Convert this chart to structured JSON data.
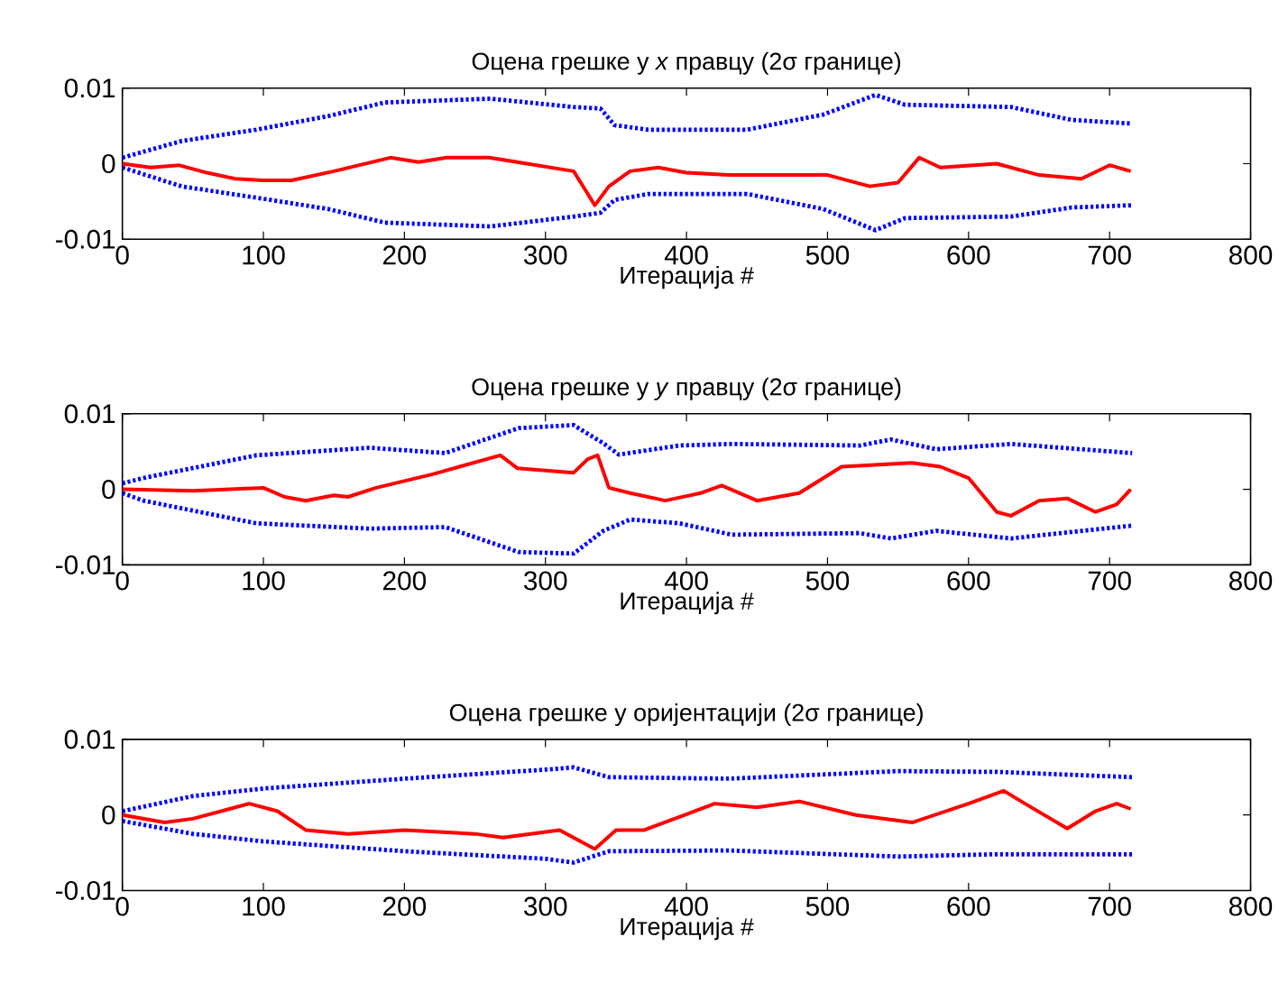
{
  "chart_data": [
    {
      "type": "line",
      "title": "Оцена грешке у *x* правцу (2σ границе)",
      "xlabel": "Итерација #",
      "xlim": [
        0,
        800
      ],
      "xticks": [
        0,
        100,
        200,
        300,
        400,
        500,
        600,
        700,
        800
      ],
      "ylim": [
        -0.01,
        0.01
      ],
      "yticks": [
        -0.01,
        0,
        0.01
      ],
      "series": [
        {
          "color": "#0000ff",
          "line_style": "dotted",
          "x": [
            0,
            42,
            95,
            146,
            186,
            261,
            320,
            339,
            349,
            373,
            443,
            497,
            534,
            555,
            630,
            673,
            716
          ],
          "values": [
            0.0008,
            0.003,
            0.0045,
            0.0063,
            0.0081,
            0.0086,
            0.0075,
            0.0073,
            0.0051,
            0.0045,
            0.0045,
            0.0065,
            0.0091,
            0.0078,
            0.0075,
            0.0058,
            0.0053
          ]
        },
        {
          "color": "#0000ff",
          "line_style": "dotted",
          "x": [
            0,
            42,
            95,
            146,
            186,
            261,
            320,
            339,
            349,
            373,
            443,
            497,
            534,
            555,
            630,
            673,
            716
          ],
          "values": [
            -0.0005,
            -0.003,
            -0.0045,
            -0.006,
            -0.0078,
            -0.0083,
            -0.007,
            -0.0065,
            -0.0048,
            -0.004,
            -0.004,
            -0.006,
            -0.0088,
            -0.0072,
            -0.007,
            -0.0058,
            -0.0055
          ]
        },
        {
          "color": "#ff0000",
          "line_style": "solid",
          "x": [
            0,
            20,
            40,
            60,
            80,
            100,
            120,
            150,
            190,
            210,
            230,
            260,
            280,
            320,
            330,
            335,
            345,
            360,
            380,
            400,
            430,
            470,
            500,
            530,
            550,
            565,
            580,
            620,
            650,
            680,
            700,
            715
          ],
          "values": [
            0,
            -0.0005,
            -0.0002,
            -0.0012,
            -0.002,
            -0.0022,
            -0.0022,
            -0.001,
            0.0008,
            0.0002,
            0.0008,
            0.0008,
            0.0002,
            -0.001,
            -0.004,
            -0.0055,
            -0.003,
            -0.001,
            -0.0005,
            -0.0012,
            -0.0015,
            -0.0015,
            -0.0015,
            -0.003,
            -0.0025,
            0.0008,
            -0.0005,
            0,
            -0.0015,
            -0.002,
            -0.0002,
            -0.001
          ]
        }
      ]
    },
    {
      "type": "line",
      "title": "Оцена грешке у *y* правцу (2σ границе)",
      "xlabel": "Итерација #",
      "xlim": [
        0,
        800
      ],
      "xticks": [
        0,
        100,
        200,
        300,
        400,
        500,
        600,
        700,
        800
      ],
      "ylim": [
        -0.01,
        0.01
      ],
      "yticks": [
        -0.01,
        0,
        0.01
      ],
      "series": [
        {
          "color": "#0000ff",
          "line_style": "dotted",
          "x": [
            0,
            15,
            95,
            175,
            229,
            281,
            320,
            341,
            352,
            395,
            432,
            523,
            545,
            577,
            630,
            716
          ],
          "values": [
            0.0008,
            0.0015,
            0.0045,
            0.0055,
            0.0048,
            0.0081,
            0.0085,
            0.0061,
            0.0046,
            0.0058,
            0.006,
            0.0058,
            0.0066,
            0.0053,
            0.006,
            0.0048
          ]
        },
        {
          "color": "#0000ff",
          "line_style": "dotted",
          "x": [
            0,
            15,
            95,
            175,
            229,
            281,
            320,
            341,
            360,
            395,
            432,
            523,
            545,
            577,
            630,
            716
          ],
          "values": [
            -0.0005,
            -0.0015,
            -0.0045,
            -0.0052,
            -0.005,
            -0.0083,
            -0.0085,
            -0.0055,
            -0.004,
            -0.0045,
            -0.006,
            -0.0058,
            -0.0065,
            -0.0055,
            -0.0065,
            -0.0048
          ]
        },
        {
          "color": "#ff0000",
          "line_style": "solid",
          "x": [
            0,
            50,
            100,
            115,
            130,
            150,
            160,
            180,
            220,
            268,
            280,
            320,
            330,
            337,
            345,
            360,
            385,
            410,
            425,
            450,
            480,
            510,
            560,
            580,
            600,
            620,
            630,
            650,
            670,
            690,
            705,
            715
          ],
          "values": [
            0,
            -0.0002,
            0.0002,
            -0.001,
            -0.0015,
            -0.0008,
            -0.001,
            0.0002,
            0.002,
            0.0045,
            0.0028,
            0.0022,
            0.004,
            0.0045,
            0.0002,
            -0.0005,
            -0.0015,
            -0.0005,
            0.0005,
            -0.0015,
            -0.0005,
            0.003,
            0.0035,
            0.003,
            0.0015,
            -0.003,
            -0.0035,
            -0.0015,
            -0.0012,
            -0.003,
            -0.002,
            0
          ]
        }
      ]
    },
    {
      "type": "line",
      "title": "Оцена грешке у оријентацији (2σ границе)",
      "xlabel": "Итерација #",
      "xlim": [
        0,
        800
      ],
      "xticks": [
        0,
        100,
        200,
        300,
        400,
        500,
        600,
        700,
        800
      ],
      "ylim": [
        -0.01,
        0.01
      ],
      "yticks": [
        -0.01,
        0,
        0.01
      ],
      "series": [
        {
          "color": "#0000ff",
          "line_style": "dotted",
          "x": [
            0,
            50,
            100,
            200,
            300,
            320,
            345,
            430,
            550,
            620,
            716
          ],
          "values": [
            0.0005,
            0.0025,
            0.0035,
            0.0048,
            0.006,
            0.0063,
            0.005,
            0.0048,
            0.0058,
            0.0057,
            0.005
          ]
        },
        {
          "color": "#0000ff",
          "line_style": "dotted",
          "x": [
            0,
            50,
            100,
            200,
            300,
            320,
            345,
            430,
            550,
            620,
            716
          ],
          "values": [
            -0.0008,
            -0.0025,
            -0.0035,
            -0.0048,
            -0.0058,
            -0.0063,
            -0.0048,
            -0.0047,
            -0.0055,
            -0.0052,
            -0.0052
          ]
        },
        {
          "color": "#ff0000",
          "line_style": "solid",
          "x": [
            0,
            30,
            50,
            90,
            110,
            130,
            160,
            200,
            250,
            270,
            310,
            335,
            350,
            370,
            420,
            450,
            480,
            520,
            560,
            600,
            625,
            640,
            670,
            690,
            705,
            715
          ],
          "values": [
            0,
            -0.001,
            -0.0005,
            0.0015,
            0.0005,
            -0.002,
            -0.0025,
            -0.002,
            -0.0025,
            -0.003,
            -0.002,
            -0.0045,
            -0.002,
            -0.002,
            0.0015,
            0.001,
            0.0018,
            0,
            -0.001,
            0.0015,
            0.0032,
            0.0015,
            -0.0018,
            0.0005,
            0.0015,
            0.0008
          ]
        }
      ]
    }
  ]
}
